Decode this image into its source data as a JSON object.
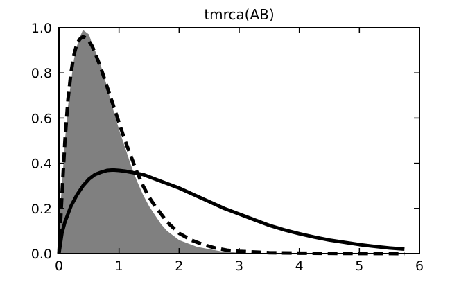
{
  "chart_data": {
    "type": "area",
    "title": "tmrca(AB)",
    "xlabel": "",
    "ylabel": "",
    "xlim": [
      0,
      6
    ],
    "ylim": [
      0,
      1.0
    ],
    "grid": false,
    "legend": "none",
    "x_ticks": [
      0,
      1,
      2,
      3,
      4,
      5,
      6
    ],
    "x_tick_labels": [
      "0",
      "1",
      "2",
      "3",
      "4",
      "5",
      "6"
    ],
    "y_ticks": [
      0.0,
      0.2,
      0.4,
      0.6,
      0.8,
      1.0
    ],
    "y_tick_labels": [
      "0.0",
      "0.2",
      "0.4",
      "0.6",
      "0.8",
      "1.0"
    ],
    "colors": {
      "histogram": "#808080",
      "curves": "#000000"
    },
    "series": [
      {
        "kind": "histogram",
        "style": "filled-gray",
        "x": [
          0.0,
          0.05,
          0.1,
          0.15,
          0.2,
          0.25,
          0.3,
          0.35,
          0.4,
          0.45,
          0.5,
          0.55,
          0.6,
          0.7,
          0.8,
          0.9,
          1.0,
          1.1,
          1.2,
          1.3,
          1.4,
          1.5,
          1.6,
          1.7,
          1.8,
          1.9,
          2.0,
          2.1,
          2.2,
          2.3,
          2.4,
          2.5,
          2.6,
          2.7,
          2.8,
          2.9,
          3.0,
          3.2,
          3.4,
          3.6
        ],
        "y": [
          0.13,
          0.3,
          0.5,
          0.65,
          0.76,
          0.86,
          0.92,
          0.96,
          0.99,
          0.98,
          0.97,
          0.93,
          0.9,
          0.83,
          0.74,
          0.64,
          0.55,
          0.47,
          0.39,
          0.32,
          0.26,
          0.21,
          0.17,
          0.13,
          0.1,
          0.08,
          0.06,
          0.05,
          0.04,
          0.03,
          0.025,
          0.02,
          0.015,
          0.01,
          0.008,
          0.006,
          0.004,
          0.003,
          0.002,
          0.001
        ]
      },
      {
        "kind": "line",
        "style": "dashed",
        "x": [
          0.0,
          0.05,
          0.1,
          0.15,
          0.2,
          0.25,
          0.3,
          0.35,
          0.4,
          0.45,
          0.5,
          0.55,
          0.6,
          0.7,
          0.8,
          0.9,
          1.0,
          1.1,
          1.2,
          1.3,
          1.4,
          1.5,
          1.6,
          1.8,
          2.0,
          2.2,
          2.4,
          2.6,
          2.8,
          3.0,
          3.5,
          4.0,
          4.5,
          5.0,
          5.5,
          5.75
        ],
        "y": [
          0.0,
          0.26,
          0.5,
          0.68,
          0.8,
          0.88,
          0.93,
          0.95,
          0.96,
          0.955,
          0.94,
          0.92,
          0.89,
          0.82,
          0.74,
          0.66,
          0.58,
          0.5,
          0.43,
          0.36,
          0.3,
          0.25,
          0.21,
          0.14,
          0.09,
          0.06,
          0.04,
          0.025,
          0.015,
          0.01,
          0.004,
          0.002,
          0.001,
          0.0005,
          0.0002,
          0.0001
        ]
      },
      {
        "kind": "line",
        "style": "solid",
        "x": [
          0.0,
          0.05,
          0.1,
          0.2,
          0.3,
          0.4,
          0.5,
          0.6,
          0.7,
          0.8,
          0.9,
          1.0,
          1.1,
          1.2,
          1.4,
          1.6,
          1.8,
          2.0,
          2.25,
          2.5,
          2.75,
          3.0,
          3.25,
          3.5,
          3.75,
          4.0,
          4.25,
          4.5,
          4.75,
          5.0,
          5.25,
          5.5,
          5.75
        ],
        "y": [
          0.0,
          0.09,
          0.14,
          0.21,
          0.26,
          0.3,
          0.33,
          0.35,
          0.36,
          0.368,
          0.37,
          0.368,
          0.365,
          0.36,
          0.35,
          0.33,
          0.31,
          0.29,
          0.26,
          0.23,
          0.2,
          0.175,
          0.15,
          0.125,
          0.105,
          0.088,
          0.073,
          0.06,
          0.05,
          0.04,
          0.032,
          0.025,
          0.02
        ]
      }
    ]
  }
}
